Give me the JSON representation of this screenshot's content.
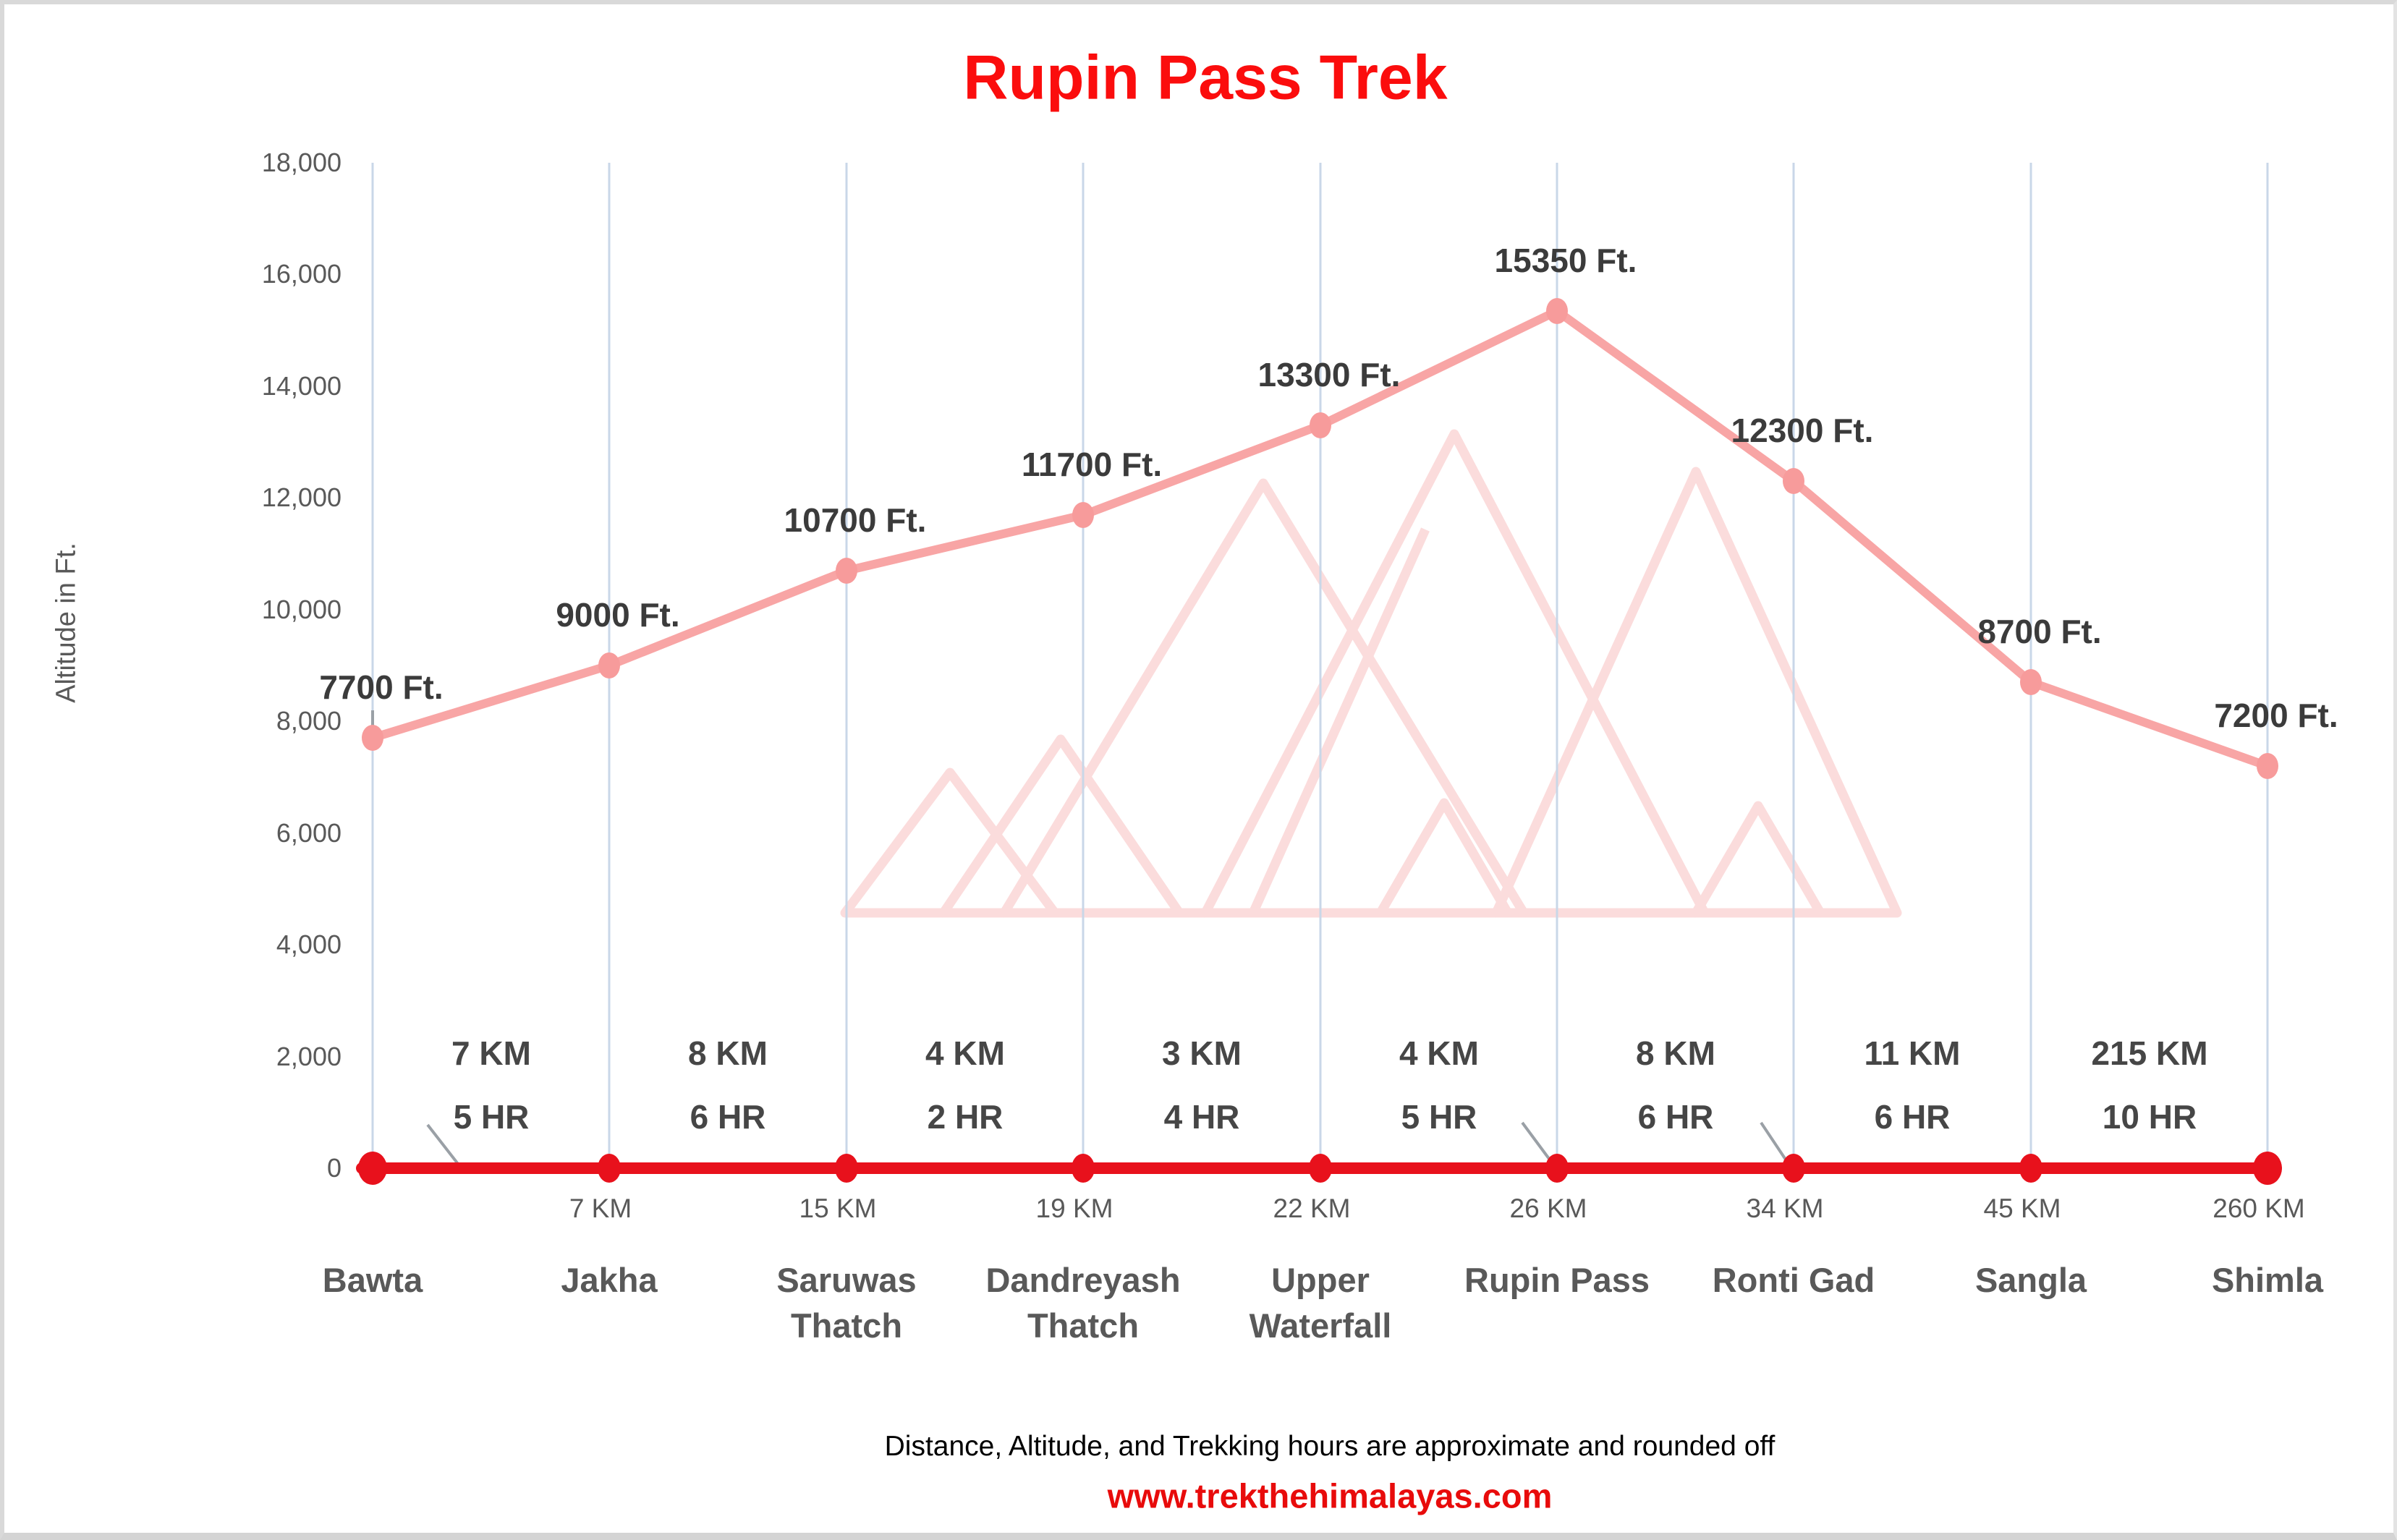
{
  "page": {
    "title": "Rupin Pass Trek",
    "footer_note": "Distance, Altitude, and Trekking hours are approximate and rounded off",
    "footer_url": "www.trekthehimalayas.com"
  },
  "colors": {
    "title_red": "#fb0d0d",
    "trek_line_pink": "#f8a5a5",
    "trek_marker_pink": "#f79b9b",
    "baseline_red": "#e8111c",
    "gridline_blue": "#c9d7e8",
    "leader_gray": "#9aa0a6",
    "data_label_dark": "#3b3b3b",
    "axis_text_gray": "#595959",
    "footer_url_red": "#e80b0b",
    "watermark_pink": "#fbdcdc",
    "frame_gray": "#d9d9d9"
  },
  "chart_data": {
    "type": "line",
    "title": "Rupin Pass Trek",
    "ylabel": "Altitude in Ft.",
    "ylim": [
      0,
      18000
    ],
    "grid": "vertical gridline at each station only; no horizontal gridlines; legend none",
    "yticks": [
      {
        "ft": 18000,
        "label": "18,000"
      },
      {
        "ft": 16000,
        "label": "16,000"
      },
      {
        "ft": 14000,
        "label": "14,000"
      },
      {
        "ft": 12000,
        "label": "12,000"
      },
      {
        "ft": 10000,
        "label": "10,000"
      },
      {
        "ft": 8000,
        "label": "8,000"
      },
      {
        "ft": 6000,
        "label": "6,000"
      },
      {
        "ft": 4000,
        "label": "4,000"
      },
      {
        "ft": 2000,
        "label": "2,000"
      },
      {
        "ft": 0,
        "label": "0"
      }
    ],
    "stations": [
      {
        "name": "Bawta",
        "altitude_ft": 7700,
        "altitude_label": "7700 Ft.",
        "km_label": ""
      },
      {
        "name": "Jakha",
        "altitude_ft": 9000,
        "altitude_label": "9000 Ft.",
        "km_label": "7 KM"
      },
      {
        "name": "Saruwas Thatch",
        "altitude_ft": 10700,
        "altitude_label": "10700 Ft.",
        "km_label": "15 KM"
      },
      {
        "name": "Dandreyash Thatch",
        "altitude_ft": 11700,
        "altitude_label": "11700 Ft.",
        "km_label": "19 KM"
      },
      {
        "name": "Upper Waterfall",
        "altitude_ft": 13300,
        "altitude_label": "13300 Ft.",
        "km_label": "22 KM"
      },
      {
        "name": "Rupin Pass",
        "altitude_ft": 15350,
        "altitude_label": "15350 Ft.",
        "km_label": "26 KM"
      },
      {
        "name": "Ronti Gad",
        "altitude_ft": 12300,
        "altitude_label": "12300 Ft.",
        "km_label": "34 KM"
      },
      {
        "name": "Sangla",
        "altitude_ft": 8700,
        "altitude_label": "8700 Ft.",
        "km_label": "45 KM"
      },
      {
        "name": "Shimla",
        "altitude_ft": 7200,
        "altitude_label": "7200 Ft.",
        "km_label": "260 KM"
      }
    ],
    "segments": [
      {
        "distance": "7 KM",
        "duration": "5 HR"
      },
      {
        "distance": "8 KM",
        "duration": "6 HR"
      },
      {
        "distance": "4 KM",
        "duration": "2 HR"
      },
      {
        "distance": "3 KM",
        "duration": "4 HR"
      },
      {
        "distance": "4 KM",
        "duration": "5 HR"
      },
      {
        "distance": "8 KM",
        "duration": "6 HR"
      },
      {
        "distance": "11 KM",
        "duration": "6 HR"
      },
      {
        "distance": "215 KM",
        "duration": "10 HR"
      }
    ]
  }
}
